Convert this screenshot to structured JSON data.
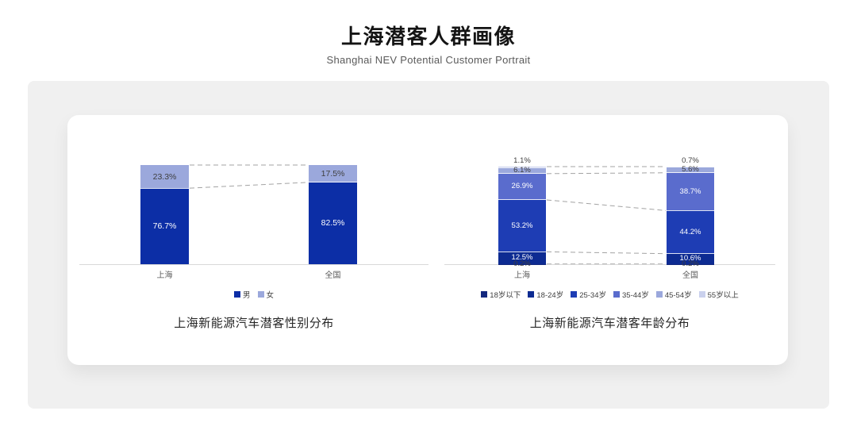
{
  "header": {
    "title": "上海潜客人群画像",
    "subtitle": "Shanghai NEV Potential Customer Portrait"
  },
  "chart_data": [
    {
      "type": "bar",
      "stacked": true,
      "title": "上海新能源汽车潜客性别分布",
      "categories": [
        "上海",
        "全国"
      ],
      "series": [
        {
          "name": "男",
          "values": [
            76.7,
            82.5
          ],
          "color": "#0c2ea6",
          "label_color": "#ffffff"
        },
        {
          "name": "女",
          "values": [
            23.3,
            17.5
          ],
          "color": "#9ba8dc",
          "label_color": "#3f3f3f"
        }
      ],
      "value_suffix": "%",
      "ylim": [
        0,
        100
      ],
      "grid": false,
      "legend_position": "bottom",
      "connector_style": "dashed",
      "connector_color": "#a3a3a3",
      "axis_color": "#d9d9d9"
    },
    {
      "type": "bar",
      "stacked": true,
      "title": "上海新能源汽车潜客年龄分布",
      "categories": [
        "上海",
        "全国"
      ],
      "series": [
        {
          "name": "18岁以下",
          "values": [
            0.2,
            0.2
          ],
          "color": "#13287e",
          "label_color": "#3f3f3f"
        },
        {
          "name": "18-24岁",
          "values": [
            12.5,
            10.6
          ],
          "color": "#0d2b92",
          "label_color": "#ffffff"
        },
        {
          "name": "25-34岁",
          "values": [
            53.2,
            44.2
          ],
          "color": "#1e3db4",
          "label_color": "#ffffff"
        },
        {
          "name": "35-44岁",
          "values": [
            26.9,
            38.7
          ],
          "color": "#5a6ccd",
          "label_color": "#ffffff"
        },
        {
          "name": "45-54岁",
          "values": [
            6.1,
            5.6
          ],
          "color": "#9ba8dc",
          "label_color": "#3f3f3f"
        },
        {
          "name": "55岁以上",
          "values": [
            1.1,
            0.7
          ],
          "color": "#cad1ed",
          "label_color": "#3f3f3f"
        }
      ],
      "value_suffix": "%",
      "ylim": [
        0,
        100
      ],
      "grid": false,
      "legend_position": "bottom",
      "connector_style": "dashed",
      "connector_color": "#a3a3a3",
      "axis_color": "#d9d9d9"
    }
  ]
}
